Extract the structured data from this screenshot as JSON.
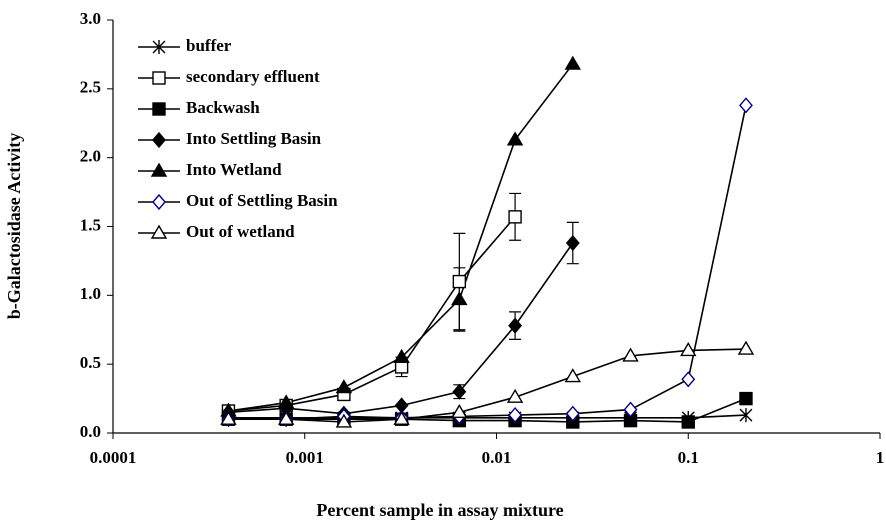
{
  "chart_data": {
    "type": "line",
    "x_label": "Percent sample in assay mixture",
    "y_label": "b-Galactosidase Activity",
    "xscale": "log",
    "xlim": [
      0.0001,
      1
    ],
    "xticks": [
      0.0001,
      0.001,
      0.01,
      0.1,
      1
    ],
    "ylim": [
      0,
      3
    ],
    "yticks": [
      {
        "value": 0,
        "label": "0.0"
      },
      {
        "value": 0.5,
        "label": "0.5"
      },
      {
        "value": 1,
        "label": "1.0"
      },
      {
        "value": 1.5,
        "label": "1.5"
      },
      {
        "value": 2,
        "label": "2.0"
      },
      {
        "value": 2.5,
        "label": "2.5"
      },
      {
        "value": 3,
        "label": "3.0"
      }
    ],
    "legend": "upper left",
    "series": [
      {
        "name": "buffer",
        "color": "#000000",
        "marker": "asterisk",
        "x": [
          0.0004,
          0.0008,
          0.0016,
          0.0032,
          0.0064,
          0.0125,
          0.025,
          0.05,
          0.1,
          0.2
        ],
        "values": [
          0.11,
          0.11,
          0.11,
          0.11,
          0.11,
          0.11,
          0.11,
          0.11,
          0.11,
          0.13
        ]
      },
      {
        "name": "secondary effluent",
        "color": "#000000",
        "marker": "open-square",
        "x": [
          0.0004,
          0.0008,
          0.0016,
          0.0032,
          0.0064,
          0.0125
        ],
        "values": [
          0.16,
          0.2,
          0.28,
          0.48,
          1.1,
          1.57
        ],
        "errors": [
          null,
          null,
          null,
          0.07,
          0.35,
          0.17
        ]
      },
      {
        "name": "Backwash",
        "color": "#000000",
        "marker": "filled-square",
        "x": [
          0.0004,
          0.0008,
          0.0016,
          0.0032,
          0.0064,
          0.0125,
          0.025,
          0.05,
          0.1,
          0.2
        ],
        "values": [
          0.1,
          0.1,
          0.1,
          0.1,
          0.09,
          0.09,
          0.08,
          0.09,
          0.08,
          0.25
        ]
      },
      {
        "name": "Into Settling Basin",
        "color": "#000000",
        "marker": "filled-diamond",
        "x": [
          0.0004,
          0.0008,
          0.0016,
          0.0032,
          0.0064,
          0.0125,
          0.025
        ],
        "values": [
          0.15,
          0.18,
          0.14,
          0.2,
          0.3,
          0.78,
          1.38
        ],
        "errors": [
          null,
          null,
          null,
          null,
          0.05,
          0.1,
          0.15
        ]
      },
      {
        "name": "Into Wetland",
        "color": "#000000",
        "marker": "filled-triangle",
        "x": [
          0.0004,
          0.0008,
          0.0016,
          0.0032,
          0.0064,
          0.0125,
          0.025
        ],
        "values": [
          0.16,
          0.22,
          0.33,
          0.55,
          0.97,
          2.13,
          2.68
        ],
        "errors": [
          null,
          null,
          null,
          null,
          0.23,
          null,
          null
        ]
      },
      {
        "name": "Out of Settling Basin",
        "color": "#000000",
        "marker": "open-diamond",
        "marker_color": "#00008b",
        "x": [
          0.0004,
          0.0008,
          0.0016,
          0.0032,
          0.0064,
          0.0125,
          0.025,
          0.05,
          0.1,
          0.2
        ],
        "values": [
          0.1,
          0.1,
          0.12,
          0.11,
          0.12,
          0.13,
          0.14,
          0.17,
          0.39,
          2.38
        ]
      },
      {
        "name": "Out of wetland",
        "color": "#000000",
        "marker": "open-triangle",
        "x": [
          0.0004,
          0.0008,
          0.0016,
          0.0032,
          0.0064,
          0.0125,
          0.025,
          0.05,
          0.1,
          0.2
        ],
        "values": [
          0.1,
          0.1,
          0.08,
          0.1,
          0.15,
          0.26,
          0.41,
          0.56,
          0.6,
          0.61
        ]
      }
    ]
  }
}
